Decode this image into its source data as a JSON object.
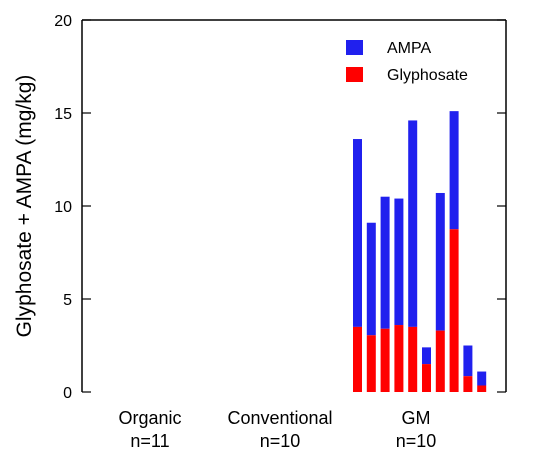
{
  "chart_data": {
    "type": "bar",
    "stacked": true,
    "title": "",
    "xlabel": "",
    "ylabel": "Glyphosate + AMPA (mg/kg)",
    "ylim": [
      0,
      20
    ],
    "yticks": [
      0,
      5,
      10,
      15,
      20
    ],
    "grid": false,
    "legend_position": "top-right",
    "groups": [
      {
        "label": "Organic",
        "count_label": "n=11",
        "samples": []
      },
      {
        "label": "Conventional",
        "count_label": "n=10",
        "samples": []
      },
      {
        "label": "GM",
        "count_label": "n=10",
        "samples": [
          1,
          2,
          3,
          4,
          5,
          6,
          7,
          8,
          9,
          10
        ]
      }
    ],
    "series": [
      {
        "name": "Glyphosate",
        "color": "#ff0000",
        "values": [
          3.5,
          3.05,
          3.4,
          3.6,
          3.5,
          1.5,
          3.3,
          8.75,
          0.85,
          0.35
        ]
      },
      {
        "name": "AMPA",
        "color": "#2020ee",
        "values": [
          10.1,
          6.05,
          7.1,
          6.8,
          11.1,
          0.9,
          7.4,
          6.35,
          1.65,
          0.75
        ]
      }
    ]
  }
}
